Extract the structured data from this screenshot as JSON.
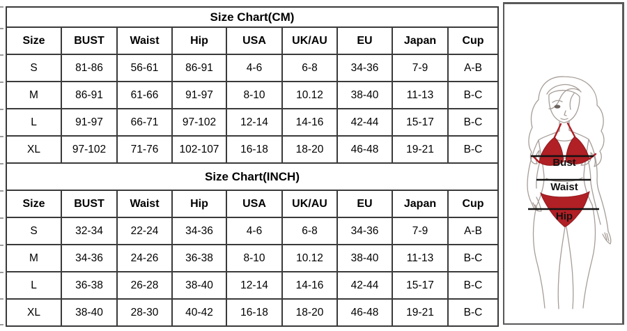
{
  "tables": [
    {
      "title": "Size Chart(CM)",
      "columns": [
        "Size",
        "BUST",
        "Waist",
        "Hip",
        "USA",
        "UK/AU",
        "EU",
        "Japan",
        "Cup"
      ],
      "rows": [
        [
          "S",
          "81-86",
          "56-61",
          "86-91",
          "4-6",
          "6-8",
          "34-36",
          "7-9",
          "A-B"
        ],
        [
          "M",
          "86-91",
          "61-66",
          "91-97",
          "8-10",
          "10.12",
          "38-40",
          "11-13",
          "B-C"
        ],
        [
          "L",
          "91-97",
          "66-71",
          "97-102",
          "12-14",
          "14-16",
          "42-44",
          "15-17",
          "B-C"
        ],
        [
          "XL",
          "97-102",
          "71-76",
          "102-107",
          "16-18",
          "18-20",
          "46-48",
          "19-21",
          "B-C"
        ]
      ]
    },
    {
      "title": "Size Chart(INCH)",
      "columns": [
        "Size",
        "BUST",
        "Waist",
        "Hip",
        "USA",
        "UK/AU",
        "EU",
        "Japan",
        "Cup"
      ],
      "rows": [
        [
          "S",
          "32-34",
          "22-24",
          "34-36",
          "4-6",
          "6-8",
          "34-36",
          "7-9",
          "A-B"
        ],
        [
          "M",
          "34-36",
          "24-26",
          "36-38",
          "8-10",
          "10.12",
          "38-40",
          "11-13",
          "B-C"
        ],
        [
          "L",
          "36-38",
          "26-28",
          "38-40",
          "12-14",
          "14-16",
          "42-44",
          "15-17",
          "B-C"
        ],
        [
          "XL",
          "38-40",
          "28-30",
          "40-42",
          "16-18",
          "18-20",
          "46-48",
          "19-21",
          "B-C"
        ]
      ]
    }
  ],
  "figure": {
    "bust_label": "Bust",
    "waist_label": "Waist",
    "hip_label": "Hip"
  },
  "colors": {
    "bikini_red": "#b02025",
    "line_art": "#a69d98",
    "table_border": "#3a3a3a",
    "figure_border": "#595959",
    "text": "#000000"
  }
}
